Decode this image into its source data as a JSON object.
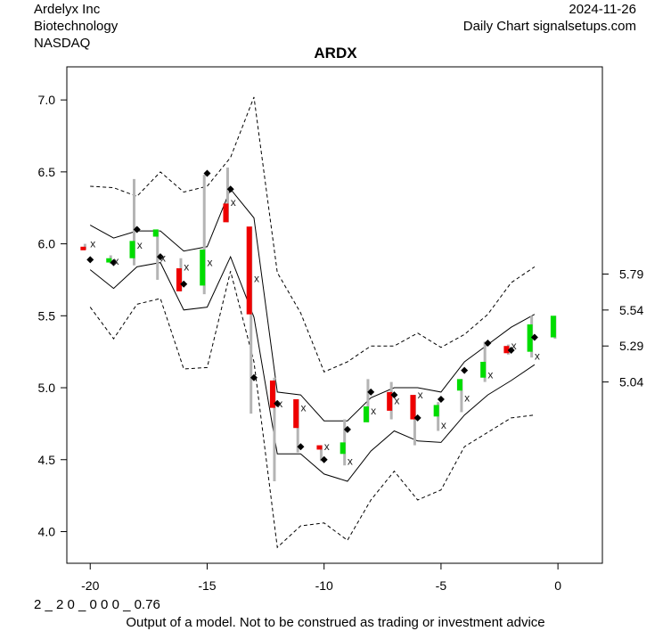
{
  "header": {
    "company": "Ardelyx Inc",
    "sector": "Biotechnology",
    "exchange": "NASDAQ",
    "date": "2024-11-26",
    "source": "Daily Chart signalsetups.com"
  },
  "footer": {
    "code": "2 _ 2 0 _ 0 0 0 _ 0.76",
    "disclaimer": "Output of a model. Not to be construed as trading or investment advice"
  },
  "chart_data": {
    "type": "candlestick-band",
    "title": "ARDX",
    "xlim": [
      -21,
      1.9
    ],
    "ylim": [
      3.78,
      7.23
    ],
    "x_ticks": [
      -20,
      -15,
      -10,
      -5,
      0
    ],
    "y_ticks": [
      4.0,
      4.5,
      5.0,
      5.5,
      6.0,
      6.5,
      7.0
    ],
    "right_ticks": [
      5.79,
      5.54,
      5.29,
      5.04
    ],
    "colors": {
      "up": "#00dd00",
      "down": "#ee0000",
      "range": "#b4b4b4",
      "band": "#000000"
    },
    "candles": [
      {
        "x": -20.3,
        "open": 5.98,
        "close": 5.97,
        "high": 6.0,
        "low": 5.96
      },
      {
        "x": -19.2,
        "open": 5.87,
        "close": 5.9,
        "high": 5.92,
        "low": 5.86
      },
      {
        "x": -18.2,
        "open": 5.9,
        "close": 6.02,
        "high": 6.45,
        "low": 5.85
      },
      {
        "x": -17.2,
        "open": 6.05,
        "close": 6.1,
        "high": 6.1,
        "low": 5.75
      },
      {
        "x": -16.2,
        "open": 5.83,
        "close": 5.67,
        "high": 5.9,
        "low": 5.67
      },
      {
        "x": -15.2,
        "open": 5.71,
        "close": 5.96,
        "high": 6.48,
        "low": 5.65
      },
      {
        "x": -14.2,
        "open": 6.28,
        "close": 6.15,
        "high": 6.53,
        "low": 6.15
      },
      {
        "x": -13.2,
        "open": 6.12,
        "close": 5.51,
        "high": 6.12,
        "low": 4.82
      },
      {
        "x": -12.2,
        "open": 5.05,
        "close": 4.86,
        "high": 5.07,
        "low": 4.35
      },
      {
        "x": -11.2,
        "open": 4.92,
        "close": 4.72,
        "high": 4.92,
        "low": 4.55
      },
      {
        "x": -10.2,
        "open": 4.6,
        "close": 4.57,
        "high": 4.6,
        "low": 4.49
      },
      {
        "x": -9.2,
        "open": 4.54,
        "close": 4.62,
        "high": 4.78,
        "low": 4.46
      },
      {
        "x": -8.2,
        "open": 4.76,
        "close": 4.87,
        "high": 5.06,
        "low": 4.76
      },
      {
        "x": -7.2,
        "open": 4.97,
        "close": 4.84,
        "high": 5.04,
        "low": 4.78
      },
      {
        "x": -6.2,
        "open": 4.95,
        "close": 4.78,
        "high": 4.95,
        "low": 4.6
      },
      {
        "x": -5.2,
        "open": 4.8,
        "close": 4.88,
        "high": 4.9,
        "low": 4.7
      },
      {
        "x": -4.2,
        "open": 4.98,
        "close": 5.06,
        "high": 5.06,
        "low": 4.83
      },
      {
        "x": -3.2,
        "open": 5.07,
        "close": 5.18,
        "high": 5.32,
        "low": 5.04
      },
      {
        "x": -2.2,
        "open": 5.29,
        "close": 5.24,
        "high": 5.3,
        "low": 5.23
      },
      {
        "x": -1.2,
        "open": 5.25,
        "close": 5.44,
        "high": 5.5,
        "low": 5.21
      },
      {
        "x": -0.2,
        "open": 5.35,
        "close": 5.5,
        "high": 5.5,
        "low": 5.34
      }
    ],
    "diamonds": [
      {
        "x": -20.0,
        "y": 5.89
      },
      {
        "x": -19.0,
        "y": 5.87
      },
      {
        "x": -18.0,
        "y": 6.1
      },
      {
        "x": -17.0,
        "y": 5.91
      },
      {
        "x": -16.0,
        "y": 5.72
      },
      {
        "x": -15.0,
        "y": 6.49
      },
      {
        "x": -14.0,
        "y": 6.38
      },
      {
        "x": -13.0,
        "y": 5.07
      },
      {
        "x": -12.0,
        "y": 4.89
      },
      {
        "x": -11.0,
        "y": 4.59
      },
      {
        "x": -10.0,
        "y": 4.5
      },
      {
        "x": -9.0,
        "y": 4.71
      },
      {
        "x": -8.0,
        "y": 4.97
      },
      {
        "x": -7.0,
        "y": 4.95
      },
      {
        "x": -6.0,
        "y": 4.79
      },
      {
        "x": -5.0,
        "y": 4.92
      },
      {
        "x": -4.0,
        "y": 5.12
      },
      {
        "x": -3.0,
        "y": 5.31
      },
      {
        "x": -2.0,
        "y": 5.26
      },
      {
        "x": -1.0,
        "y": 5.35
      }
    ],
    "crosses": [
      {
        "x": -20.0,
        "y": 6.0
      },
      {
        "x": -19.0,
        "y": 5.88
      },
      {
        "x": -18.0,
        "y": 5.99
      },
      {
        "x": -17.0,
        "y": 5.9
      },
      {
        "x": -16.0,
        "y": 5.84
      },
      {
        "x": -15.0,
        "y": 5.87
      },
      {
        "x": -14.0,
        "y": 6.29
      },
      {
        "x": -13.0,
        "y": 5.76
      },
      {
        "x": -12.0,
        "y": 4.89
      },
      {
        "x": -11.0,
        "y": 4.86
      },
      {
        "x": -10.0,
        "y": 4.59
      },
      {
        "x": -9.0,
        "y": 4.49
      },
      {
        "x": -8.0,
        "y": 4.84
      },
      {
        "x": -7.0,
        "y": 4.91
      },
      {
        "x": -6.0,
        "y": 4.95
      },
      {
        "x": -5.0,
        "y": 4.74
      },
      {
        "x": -4.0,
        "y": 4.93
      },
      {
        "x": -3.0,
        "y": 5.09
      },
      {
        "x": -2.0,
        "y": 5.29
      },
      {
        "x": -1.0,
        "y": 5.22
      }
    ],
    "band_x": [
      -20,
      -19,
      -18,
      -17,
      -16,
      -15,
      -14,
      -13,
      -12,
      -11,
      -10,
      -9,
      -8,
      -7,
      -6,
      -5,
      -4,
      -3,
      -2,
      -1
    ],
    "inner_upper": [
      6.13,
      6.04,
      6.09,
      6.09,
      5.95,
      5.98,
      6.38,
      6.18,
      4.97,
      4.95,
      4.77,
      4.77,
      4.93,
      5.0,
      5.0,
      4.97,
      5.18,
      5.3,
      5.42,
      5.51
    ],
    "inner_lower": [
      5.82,
      5.69,
      5.84,
      5.87,
      5.54,
      5.56,
      5.91,
      5.49,
      4.54,
      4.54,
      4.4,
      4.35,
      4.56,
      4.7,
      4.63,
      4.62,
      4.81,
      4.95,
      5.05,
      5.16
    ],
    "outer_upper": [
      6.4,
      6.39,
      6.33,
      6.5,
      6.36,
      6.4,
      6.6,
      7.02,
      5.8,
      5.52,
      5.11,
      5.18,
      5.29,
      5.29,
      5.38,
      5.28,
      5.37,
      5.51,
      5.73,
      5.84
    ],
    "outer_lower": [
      5.56,
      5.34,
      5.58,
      5.62,
      5.13,
      5.14,
      5.81,
      5.18,
      3.89,
      4.04,
      4.06,
      3.94,
      4.22,
      4.42,
      4.22,
      4.29,
      4.59,
      4.69,
      4.79,
      4.81
    ]
  }
}
